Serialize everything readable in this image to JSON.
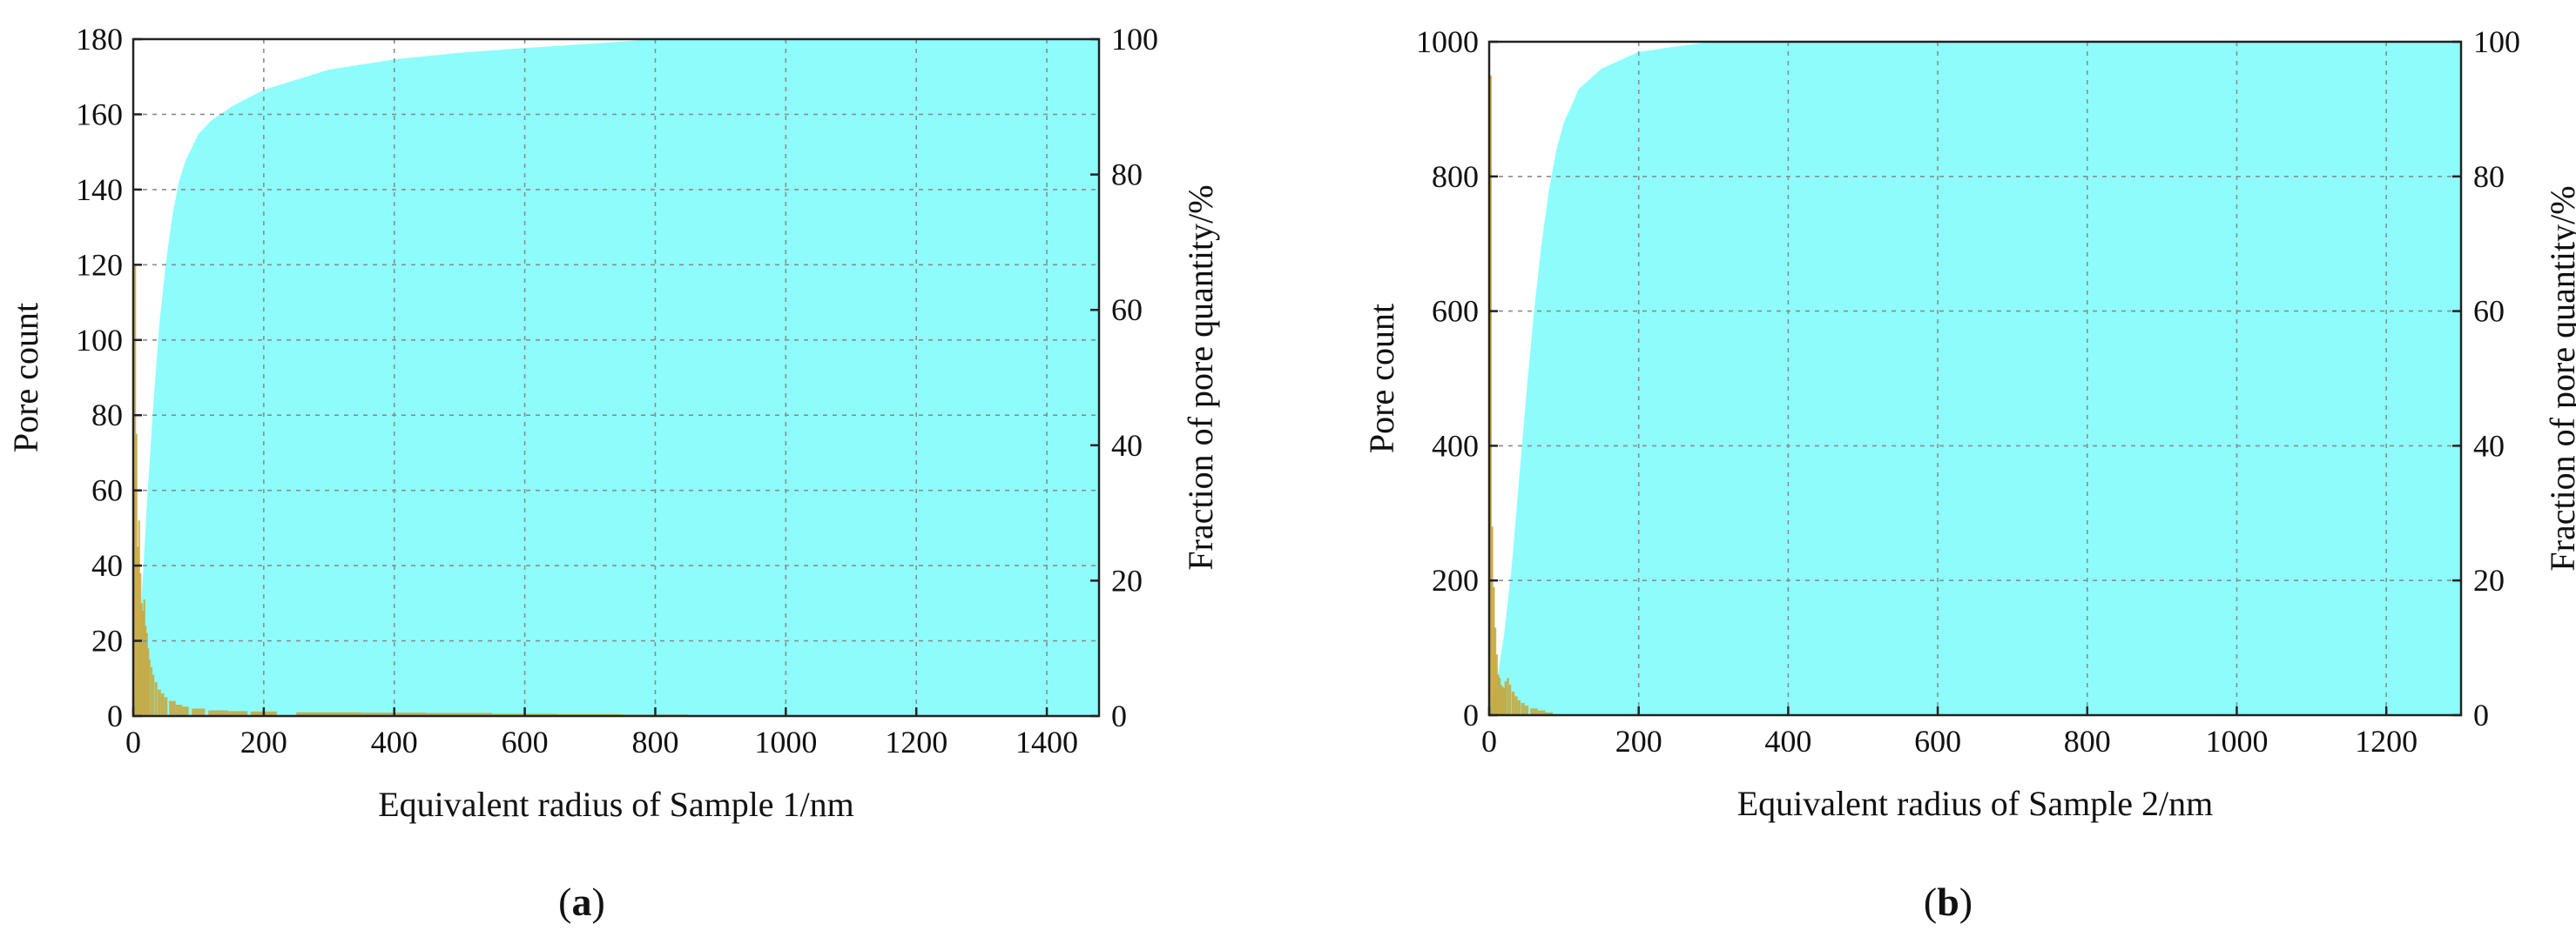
{
  "chart_data": [
    {
      "panel": "a",
      "caption_letter": "a",
      "type": "bar+area",
      "xlabel": "Equivalent radius of Sample 1/nm",
      "ylabel_left": "Pore count",
      "ylabel_right": "Fraction of pore quantity/%",
      "xlim": [
        0,
        1480
      ],
      "ylim_left": [
        0,
        180
      ],
      "ylim_right": [
        0,
        100
      ],
      "xticks": [
        0,
        200,
        400,
        600,
        800,
        1000,
        1200,
        1400
      ],
      "yticks_left": [
        0,
        20,
        40,
        60,
        80,
        100,
        120,
        140,
        160,
        180
      ],
      "yticks_right": [
        0,
        20,
        40,
        60,
        80,
        100
      ],
      "grid": true,
      "colors": {
        "histogram": "#c8a43a",
        "cumulative": "#8ffcfc"
      },
      "series": [
        {
          "kind": "histogram",
          "axis": "left",
          "x": [
            1,
            3,
            5,
            7,
            9,
            11,
            13,
            15,
            17,
            19,
            21,
            23,
            25,
            28,
            31,
            35,
            40,
            45,
            50,
            60,
            70,
            80,
            100,
            130,
            160,
            200,
            300,
            400,
            500,
            600,
            700,
            800,
            900,
            1000
          ],
          "values": [
            60,
            120,
            75,
            45,
            52,
            38,
            30,
            28,
            31,
            24,
            22,
            18,
            15,
            13,
            11,
            9,
            7,
            6,
            5,
            4,
            3,
            2.5,
            2,
            1.5,
            1.3,
            1.2,
            1,
            0.9,
            0.8,
            0.6,
            0.5,
            0.4,
            0.2,
            0
          ]
        },
        {
          "kind": "cumulative",
          "axis": "right",
          "x": [
            0,
            10,
            20,
            30,
            40,
            50,
            60,
            70,
            80,
            90,
            100,
            120,
            150,
            200,
            300,
            400,
            500,
            600,
            700,
            800,
            1480
          ],
          "values": [
            0,
            12,
            30,
            45,
            58,
            67,
            74,
            79,
            82,
            84,
            86,
            88,
            90,
            92.5,
            95.5,
            97,
            98,
            98.7,
            99.3,
            100,
            100
          ]
        }
      ]
    },
    {
      "panel": "b",
      "caption_letter": "b",
      "type": "bar+area",
      "xlabel": "Equivalent radius of Sample 2/nm",
      "ylabel_left": "Pore count",
      "ylabel_right": "Fraction of pore quantity/%",
      "xlim": [
        0,
        1300
      ],
      "ylim_left": [
        0,
        1000
      ],
      "ylim_right": [
        0,
        100
      ],
      "xticks": [
        0,
        200,
        400,
        600,
        800,
        1000,
        1200
      ],
      "yticks_left": [
        0,
        200,
        400,
        600,
        800,
        1000
      ],
      "yticks_right": [
        0,
        20,
        40,
        60,
        80,
        100
      ],
      "grid": true,
      "colors": {
        "histogram": "#c8a43a",
        "cumulative": "#8ffcfc"
      },
      "series": [
        {
          "kind": "histogram",
          "axis": "left",
          "x": [
            2,
            4,
            6,
            8,
            10,
            12,
            14,
            16,
            18,
            20,
            22,
            25,
            28,
            32,
            36,
            40,
            45,
            50,
            60,
            70,
            80,
            100
          ],
          "values": [
            950,
            280,
            190,
            130,
            90,
            60,
            55,
            45,
            42,
            40,
            50,
            55,
            45,
            35,
            28,
            22,
            18,
            14,
            10,
            7,
            4,
            1
          ]
        },
        {
          "kind": "cumulative",
          "axis": "right",
          "x": [
            0,
            10,
            20,
            30,
            40,
            50,
            60,
            70,
            80,
            90,
            100,
            120,
            150,
            200,
            250,
            300,
            1300
          ],
          "values": [
            0,
            5,
            12,
            22,
            35,
            48,
            60,
            70,
            78,
            84,
            88,
            93,
            96,
            98.5,
            99.3,
            100,
            100
          ]
        }
      ]
    }
  ]
}
